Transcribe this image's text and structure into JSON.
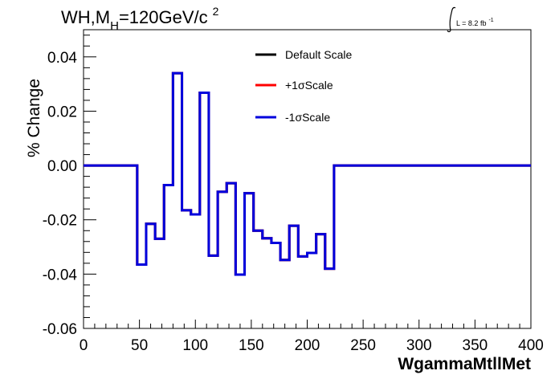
{
  "chart_data": {
    "type": "line",
    "title_main": "WH,M",
    "title_sub": "H",
    "title_rest": "=120GeV/c",
    "title_sup": "2",
    "lumi_label": "L = 8.2 fb",
    "lumi_sup": "-1",
    "xlabel": "WgammaMtllMet",
    "ylabel": "% Change",
    "xlim": [
      0,
      400
    ],
    "ylim": [
      -0.06,
      0.05
    ],
    "x_ticks": [
      0,
      50,
      100,
      150,
      200,
      250,
      300,
      350,
      400
    ],
    "x_tick_labels": [
      "0",
      "50",
      "100",
      "150",
      "200",
      "250",
      "300",
      "350",
      "400"
    ],
    "y_ticks": [
      -0.06,
      -0.04,
      -0.02,
      0.0,
      0.02,
      0.04
    ],
    "y_tick_labels": [
      "-0.06",
      "-0.04",
      "-0.02",
      "0.00",
      "0.02",
      "0.04"
    ],
    "grid": false,
    "legend_position": "top-center",
    "bin_edges": [
      0,
      10,
      20,
      30,
      40,
      48,
      56,
      64,
      72,
      80,
      88,
      96,
      104,
      112,
      120,
      128,
      136,
      144,
      152,
      160,
      168,
      176,
      184,
      192,
      200,
      208,
      216,
      224,
      232,
      240,
      250,
      260,
      270,
      280,
      290,
      300,
      310,
      320,
      330,
      340,
      350,
      360,
      370,
      380,
      390,
      400
    ],
    "series": [
      {
        "name": "Default Scale",
        "color": "#000000",
        "values": [
          0,
          0,
          0,
          0,
          0,
          -0.0365,
          -0.0215,
          -0.027,
          -0.0072,
          0.034,
          -0.0165,
          -0.018,
          0.0268,
          -0.0332,
          -0.0097,
          -0.0065,
          -0.0402,
          -0.0102,
          -0.024,
          -0.0268,
          -0.0285,
          -0.0348,
          -0.0222,
          -0.0335,
          -0.0322,
          -0.0253,
          -0.038,
          0,
          0,
          0,
          0,
          0,
          0,
          0,
          0,
          0,
          0,
          0,
          0,
          0,
          0,
          0,
          0,
          0,
          0
        ]
      },
      {
        "name": "+1σScale",
        "color": "#ff0000",
        "values": [
          0,
          0,
          0,
          0,
          0,
          -0.0365,
          -0.0215,
          -0.027,
          -0.0072,
          0.034,
          -0.0165,
          -0.018,
          0.0268,
          -0.0332,
          -0.0097,
          -0.0065,
          -0.0402,
          -0.0102,
          -0.024,
          -0.0268,
          -0.0285,
          -0.0348,
          -0.0222,
          -0.0335,
          -0.0322,
          -0.0253,
          -0.038,
          0,
          0,
          0,
          0,
          0,
          0,
          0,
          0,
          0,
          0,
          0,
          0,
          0,
          0,
          0,
          0,
          0,
          0
        ]
      },
      {
        "name": "-1σScale",
        "color": "#0000dd",
        "values": [
          0,
          0,
          0,
          0,
          0,
          -0.0365,
          -0.0215,
          -0.027,
          -0.0072,
          0.034,
          -0.0165,
          -0.018,
          0.0268,
          -0.0332,
          -0.0097,
          -0.0065,
          -0.0402,
          -0.0102,
          -0.024,
          -0.0268,
          -0.0285,
          -0.0348,
          -0.0222,
          -0.0335,
          -0.0322,
          -0.0253,
          -0.038,
          0,
          0,
          0,
          0,
          0,
          0,
          0,
          0,
          0,
          0,
          0,
          0,
          0,
          0,
          0,
          0,
          0,
          0
        ]
      }
    ]
  }
}
